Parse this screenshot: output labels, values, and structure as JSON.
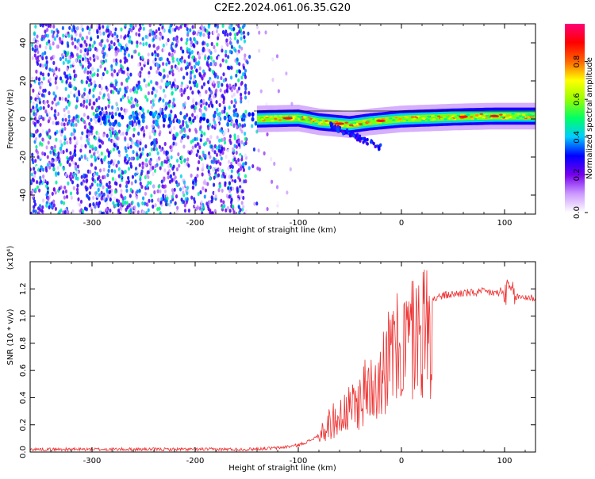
{
  "title": "C2E2.2024.061.06.35.G20",
  "chart_data": [
    {
      "type": "heatmap",
      "name": "spectrogram",
      "xlabel": "Height of straight line (km)",
      "ylabel": "Frequency (Hz)",
      "xlim": [
        -360,
        130
      ],
      "ylim": [
        -50,
        50
      ],
      "xticks": [
        -300,
        -200,
        -100,
        0,
        100
      ],
      "yticks": [
        -40,
        -20,
        0,
        20,
        40
      ],
      "colorbar": {
        "label": "Normalized spectral amplitude",
        "range": [
          0,
          1
        ],
        "ticks": [
          0.0,
          0.2,
          0.4,
          0.6,
          0.8
        ],
        "colormap": [
          "#ffffff",
          "#cc99ff",
          "#7700ee",
          "#0000ff",
          "#00ccff",
          "#00ff66",
          "#99ff00",
          "#ffff00",
          "#ff6600",
          "#ff0000",
          "#ff0077"
        ]
      },
      "signal_band": {
        "onset_height_km": -140,
        "trace": [
          {
            "x": -140,
            "f": 0.0
          },
          {
            "x": -100,
            "f": 0.5
          },
          {
            "x": -80,
            "f": -1.5
          },
          {
            "x": -50,
            "f": -3.0
          },
          {
            "x": -30,
            "f": -1.5
          },
          {
            "x": 0,
            "f": 0.0
          },
          {
            "x": 50,
            "f": 1.0
          },
          {
            "x": 90,
            "f": 1.5
          },
          {
            "x": 130,
            "f": 1.5
          }
        ]
      }
    },
    {
      "type": "line",
      "name": "snr",
      "xlabel": "Height of straight line (km)",
      "ylabel": "SNR (10 * v/v)",
      "y_multiplier": "(x10⁴)",
      "xlim": [
        -360,
        130
      ],
      "ylim": [
        0,
        1.4
      ],
      "xticks": [
        -300,
        -200,
        -100,
        0,
        100
      ],
      "yticks": [
        0.0,
        0.2,
        0.4,
        0.6,
        0.8,
        1.0,
        1.2
      ],
      "series": [
        {
          "name": "SNR",
          "color": "#ee3333",
          "x": [
            -360,
            -300,
            -250,
            -200,
            -150,
            -120,
            -100,
            -90,
            -80,
            -75,
            -70,
            -60,
            -50,
            -40,
            -30,
            -20,
            -10,
            0,
            10,
            20,
            30,
            40,
            50,
            60,
            70,
            80,
            90,
            100,
            105,
            110,
            120,
            130
          ],
          "y": [
            0.02,
            0.02,
            0.02,
            0.02,
            0.02,
            0.03,
            0.05,
            0.08,
            0.12,
            0.18,
            0.25,
            0.3,
            0.36,
            0.45,
            0.58,
            0.72,
            0.82,
            0.9,
            0.98,
            1.05,
            1.12,
            1.15,
            1.16,
            1.17,
            1.17,
            1.18,
            1.17,
            1.16,
            1.2,
            1.14,
            1.14,
            1.13
          ]
        }
      ]
    }
  ]
}
